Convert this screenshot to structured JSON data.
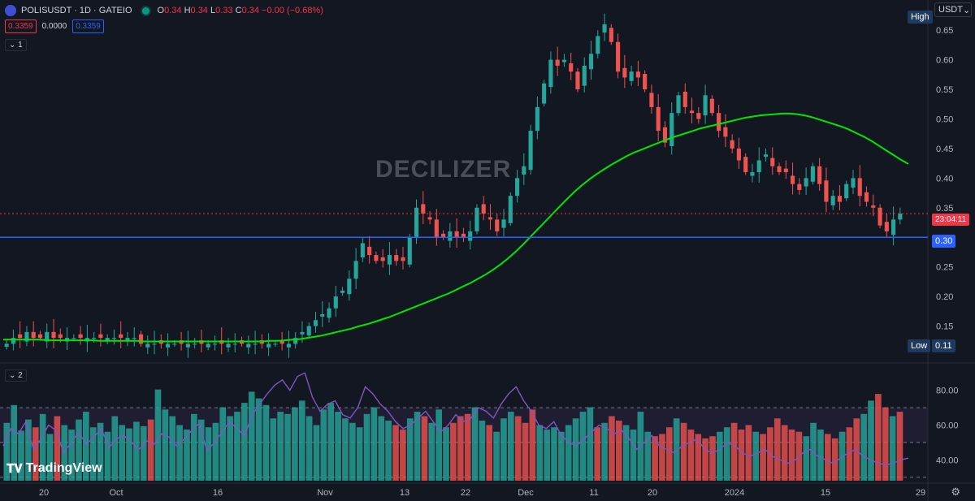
{
  "header": {
    "symbol": "POLISUSDT · 1D · GATEIO",
    "open_label": "O",
    "open": "0.34",
    "high_label": "H",
    "high": "0.34",
    "low_label": "L",
    "low": "0.33",
    "close_label": "C",
    "close": "0.34",
    "change": "−0.00 (−0.68%)"
  },
  "price_boxes": {
    "bid": "0.3359",
    "spread": "0.0000",
    "ask": "0.3359"
  },
  "panes": {
    "main_label": "1",
    "indicator_label": "2"
  },
  "watermark": "DECILIZER",
  "currency": {
    "value": "USDT",
    "arrow": "⌄"
  },
  "tags": {
    "high_label": "High",
    "low_label": "Low",
    "low_value": "0.11",
    "countdown": "23:04:11",
    "line_price": "0.30"
  },
  "brand": "TradingView",
  "colors": {
    "up": "#26a69a",
    "down": "#ef5350",
    "ma": "#00e600",
    "rsi": "#7e57c2",
    "hline": "#2962ff",
    "bg": "#131722"
  },
  "chart_data": {
    "type": "candlestick",
    "title": "POLISUSDT · 1D · GATEIO",
    "ylim": [
      0.1,
      0.69
    ],
    "y_ticks": [
      "0.65",
      "0.60",
      "0.55",
      "0.50",
      "0.45",
      "0.40",
      "0.35",
      "0.25",
      "0.20",
      "0.15"
    ],
    "x_ticks": [
      "20",
      "Oct",
      "16",
      "Nov",
      "13",
      "22",
      "Dec",
      "11",
      "20",
      "2024",
      "15",
      "29"
    ],
    "horizontal_line": 0.3,
    "last_price": 0.34,
    "close_series": [
      0.12,
      0.13,
      0.13,
      0.14,
      0.13,
      0.13,
      0.14,
      0.13,
      0.13,
      0.13,
      0.13,
      0.13,
      0.13,
      0.13,
      0.13,
      0.13,
      0.13,
      0.13,
      0.13,
      0.13,
      0.12,
      0.12,
      0.12,
      0.12,
      0.12,
      0.12,
      0.12,
      0.12,
      0.12,
      0.12,
      0.12,
      0.12,
      0.12,
      0.12,
      0.12,
      0.12,
      0.12,
      0.12,
      0.12,
      0.12,
      0.12,
      0.12,
      0.12,
      0.13,
      0.14,
      0.15,
      0.16,
      0.17,
      0.18,
      0.2,
      0.21,
      0.23,
      0.26,
      0.29,
      0.27,
      0.26,
      0.26,
      0.27,
      0.26,
      0.26,
      0.3,
      0.35,
      0.34,
      0.33,
      0.3,
      0.3,
      0.31,
      0.3,
      0.3,
      0.31,
      0.35,
      0.34,
      0.33,
      0.31,
      0.33,
      0.37,
      0.4,
      0.42,
      0.48,
      0.52,
      0.56,
      0.6,
      0.59,
      0.6,
      0.58,
      0.55,
      0.59,
      0.61,
      0.64,
      0.66,
      0.63,
      0.58,
      0.57,
      0.58,
      0.57,
      0.55,
      0.52,
      0.48,
      0.46,
      0.51,
      0.54,
      0.52,
      0.51,
      0.5,
      0.54,
      0.51,
      0.48,
      0.47,
      0.45,
      0.43,
      0.41,
      0.41,
      0.43,
      0.44,
      0.42,
      0.41,
      0.41,
      0.39,
      0.38,
      0.4,
      0.42,
      0.39,
      0.36,
      0.37,
      0.36,
      0.39,
      0.4,
      0.37,
      0.36,
      0.35,
      0.32,
      0.31,
      0.33,
      0.34
    ],
    "ma_series": [
      0.127,
      0.127,
      0.127,
      0.127,
      0.127,
      0.127,
      0.126,
      0.126,
      0.126,
      0.126,
      0.126,
      0.126,
      0.126,
      0.125,
      0.125,
      0.125,
      0.125,
      0.125,
      0.125,
      0.124,
      0.124,
      0.124,
      0.124,
      0.124,
      0.124,
      0.124,
      0.124,
      0.124,
      0.124,
      0.124,
      0.124,
      0.124,
      0.124,
      0.124,
      0.124,
      0.124,
      0.125,
      0.125,
      0.126,
      0.127,
      0.128,
      0.13,
      0.132,
      0.134,
      0.137,
      0.14,
      0.143,
      0.146,
      0.15,
      0.153,
      0.157,
      0.161,
      0.165,
      0.17,
      0.175,
      0.18,
      0.185,
      0.19,
      0.195,
      0.2,
      0.205,
      0.211,
      0.217,
      0.223,
      0.23,
      0.237,
      0.245,
      0.254,
      0.264,
      0.275,
      0.287,
      0.3,
      0.313,
      0.326,
      0.339,
      0.352,
      0.365,
      0.377,
      0.388,
      0.398,
      0.407,
      0.415,
      0.423,
      0.43,
      0.437,
      0.443,
      0.448,
      0.453,
      0.458,
      0.463,
      0.468,
      0.472,
      0.476,
      0.48,
      0.484,
      0.487,
      0.49,
      0.493,
      0.496,
      0.499,
      0.502,
      0.504,
      0.506,
      0.507,
      0.508,
      0.509,
      0.509,
      0.508,
      0.506,
      0.503,
      0.499,
      0.495,
      0.491,
      0.487,
      0.482,
      0.476,
      0.47,
      0.463,
      0.455,
      0.447,
      0.439,
      0.431,
      0.424
    ],
    "indicator": {
      "ylim": [
        28,
        92
      ],
      "y_ticks": [
        "80.00",
        "60.00",
        "40.00"
      ],
      "rsi_series": [
        48,
        58,
        55,
        62,
        46,
        52,
        60,
        57,
        44,
        50,
        56,
        49,
        53,
        58,
        47,
        52,
        54,
        50,
        46,
        51,
        49,
        55,
        53,
        48,
        52,
        57,
        61,
        45,
        50,
        56,
        62,
        58,
        54,
        66,
        72,
        78,
        83,
        86,
        80,
        88,
        90,
        76,
        68,
        72,
        74,
        66,
        64,
        70,
        82,
        78,
        72,
        68,
        62,
        58,
        60,
        64,
        68,
        62,
        56,
        60,
        66,
        62,
        64,
        70,
        68,
        64,
        72,
        78,
        82,
        74,
        68,
        60,
        58,
        62,
        54,
        50,
        48,
        52,
        56,
        60,
        58,
        55,
        57,
        52,
        46,
        50,
        54,
        48,
        46,
        44,
        48,
        50,
        52,
        46,
        44,
        46,
        50,
        48,
        44,
        42,
        44,
        46,
        42,
        40,
        38,
        40,
        44,
        46,
        42,
        40,
        38,
        41,
        44,
        46,
        42,
        40,
        38,
        37,
        38,
        40,
        41
      ],
      "volume_pct": [
        52,
        68,
        45,
        55,
        48,
        60,
        42,
        58,
        50,
        46,
        55,
        62,
        48,
        52,
        44,
        58,
        50,
        47,
        53,
        49,
        55,
        82,
        64,
        58,
        50,
        46,
        60,
        55,
        48,
        52,
        66,
        58,
        62,
        70,
        80,
        74,
        68,
        56,
        62,
        60,
        66,
        72,
        58,
        50,
        64,
        70,
        62,
        56,
        52,
        48,
        60,
        66,
        58,
        54,
        50,
        46,
        56,
        62,
        58,
        52,
        64,
        48,
        52,
        58,
        60,
        66,
        54,
        50,
        44,
        56,
        62,
        58,
        52,
        64,
        50,
        46,
        48,
        44,
        50,
        56,
        62,
        66,
        48,
        52,
        58,
        54,
        50,
        46,
        62,
        44,
        40,
        42,
        48,
        56,
        52,
        46,
        42,
        38,
        40,
        44,
        48,
        52,
        46,
        50,
        44,
        42,
        48,
        56,
        50,
        46,
        44,
        40,
        52,
        46,
        42,
        38,
        44,
        48,
        56,
        60,
        72,
        78,
        66,
        58,
        62
      ]
    }
  }
}
